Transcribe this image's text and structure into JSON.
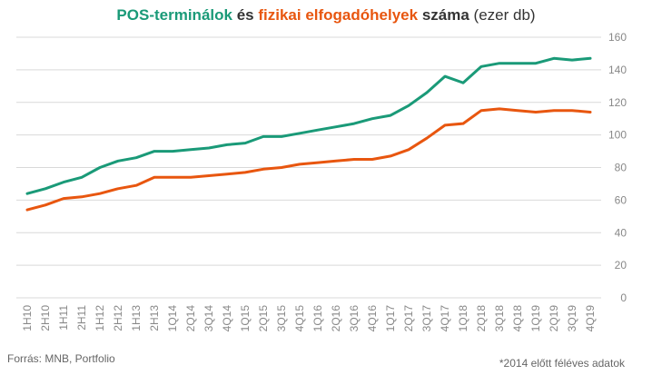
{
  "title": {
    "part1": "POS-terminálok",
    "part2": "és",
    "part3": "fizikai elfogadóhelyek",
    "part4": "száma",
    "part5": "(ezer db)"
  },
  "source": "Forrás: MNB, Portfolio",
  "footnote": "*2014 előtt féléves adatok",
  "colors": {
    "pos": "#1a9a78",
    "fizikai": "#e8560f",
    "grid": "#d9d9d9",
    "tick": "#888888"
  },
  "chart_data": {
    "type": "line",
    "categories": [
      "1H10",
      "2H10",
      "1H11",
      "2H11",
      "1H12",
      "2H12",
      "1H13",
      "2H13",
      "1Q14",
      "2Q14",
      "3Q14",
      "4Q14",
      "1Q15",
      "2Q15",
      "3Q15",
      "4Q15",
      "1Q16",
      "2Q16",
      "3Q16",
      "4Q16",
      "1Q17",
      "2Q17",
      "3Q17",
      "4Q17",
      "1Q18",
      "2Q18",
      "3Q18",
      "4Q18",
      "1Q19",
      "2Q19",
      "3Q19",
      "4Q19"
    ],
    "series": [
      {
        "name": "POS-terminálok",
        "color": "#1a9a78",
        "values": [
          64,
          67,
          71,
          74,
          80,
          84,
          86,
          90,
          90,
          91,
          92,
          94,
          95,
          99,
          99,
          101,
          103,
          105,
          107,
          110,
          112,
          118,
          126,
          136,
          132,
          142,
          144,
          144,
          144,
          147,
          146,
          147
        ]
      },
      {
        "name": "fizikai elfogadóhelyek",
        "color": "#e8560f",
        "values": [
          54,
          57,
          61,
          62,
          64,
          67,
          69,
          74,
          74,
          74,
          75,
          76,
          77,
          79,
          80,
          82,
          83,
          84,
          85,
          85,
          87,
          91,
          98,
          106,
          107,
          115,
          116,
          115,
          114,
          115,
          115,
          114
        ]
      }
    ],
    "ylim": [
      0,
      160
    ],
    "yticks": [
      0,
      20,
      40,
      60,
      80,
      100,
      120,
      140,
      160
    ],
    "y_axis_side": "right",
    "grid": true,
    "legend": "in title"
  }
}
